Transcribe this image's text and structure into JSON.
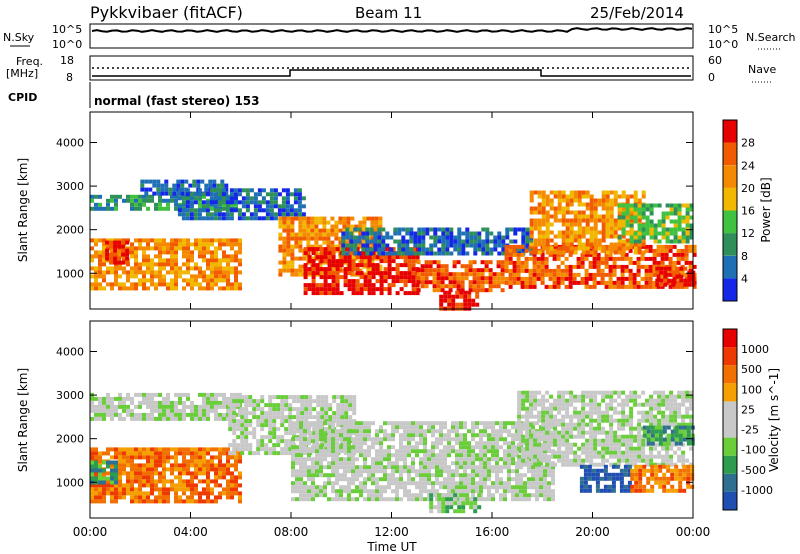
{
  "header": {
    "station": "Pykkvibaer (fitACF)",
    "beam": "Beam 11",
    "date": "25/Feb/2014"
  },
  "aux_panels": {
    "nsky_label": "N.Sky",
    "nsearch_label": "N.Search",
    "nsky_ticks": [
      "10^5",
      "10^0"
    ],
    "nsearch_ticks": [
      "10^5",
      "10^0"
    ],
    "freq_label_1": "Freq.",
    "freq_label_2": "[MHz]",
    "freq_ticks": [
      "18",
      "8"
    ],
    "nave_label": "Nave",
    "nave_ticks": [
      "60",
      "0"
    ],
    "cpid_label": "CPID",
    "cpid_text": "normal (fast stereo) 153"
  },
  "colors": {
    "power_scale": [
      "#1426e8",
      "#1e6fb5",
      "#2f8f5a",
      "#3fc23f",
      "#f2b800",
      "#f58a00",
      "#f25a00",
      "#e60000"
    ],
    "velocity_scale": [
      "#1f4fb0",
      "#2f6f8f",
      "#2e9c4f",
      "#6acd3a",
      "#c8c8c8",
      "#c8c8c8",
      "#f5a000",
      "#f27000",
      "#ee3a00",
      "#e60000"
    ],
    "ground_scatter": "#c0c0c0"
  },
  "chart_data": [
    {
      "type": "heatmap",
      "title": "",
      "xlabel": "",
      "ylabel": "Slant Range [km]",
      "x_ticks": [
        "00:00",
        "04:00",
        "08:00",
        "12:00",
        "16:00",
        "20:00",
        "00:00"
      ],
      "y_ticks": [
        "1000",
        "2000",
        "3000",
        "4000"
      ],
      "ylim": [
        180,
        4700
      ],
      "colorbar": {
        "label": "Power [dB]",
        "tick_labels": [
          "4",
          "8",
          "12",
          "16",
          "20",
          "24",
          "28"
        ]
      },
      "echo_bands": [
        {
          "t": [
            0.0,
            5.9
          ],
          "r": [
            650,
            1800
          ],
          "level": 5
        },
        {
          "t": [
            0.6,
            1.4
          ],
          "r": [
            1250,
            1750
          ],
          "level": 7
        },
        {
          "t": [
            0.0,
            5.8
          ],
          "r": [
            2450,
            2800
          ],
          "level": 2
        },
        {
          "t": [
            2.0,
            5.5
          ],
          "r": [
            2800,
            3150
          ],
          "level": 1
        },
        {
          "t": [
            3.5,
            8.5
          ],
          "r": [
            2250,
            2950
          ],
          "level": 1
        },
        {
          "t": [
            7.5,
            11.5
          ],
          "r": [
            1000,
            2300
          ],
          "level": 5
        },
        {
          "t": [
            8.5,
            13.0
          ],
          "r": [
            550,
            1600
          ],
          "level": 7
        },
        {
          "t": [
            10.0,
            17.5
          ],
          "r": [
            1450,
            2050
          ],
          "level": 1
        },
        {
          "t": [
            13.0,
            16.5
          ],
          "r": [
            600,
            1300
          ],
          "level": 6
        },
        {
          "t": [
            13.9,
            15.4
          ],
          "r": [
            200,
            600
          ],
          "level": 7
        },
        {
          "t": [
            16.5,
            24.0
          ],
          "r": [
            650,
            1650
          ],
          "level": 6
        },
        {
          "t": [
            17.5,
            22.0
          ],
          "r": [
            1500,
            2900
          ],
          "level": 5
        },
        {
          "t": [
            21.0,
            24.0
          ],
          "r": [
            1700,
            2600
          ],
          "level": 3
        },
        {
          "t": [
            22.5,
            24.0
          ],
          "r": [
            750,
            1150
          ],
          "level": 7
        }
      ]
    },
    {
      "type": "heatmap",
      "title": "",
      "xlabel": "Time UT",
      "ylabel": "Slant Range [km]",
      "x_ticks": [
        "00:00",
        "04:00",
        "08:00",
        "12:00",
        "16:00",
        "20:00",
        "00:00"
      ],
      "y_ticks": [
        "1000",
        "2000",
        "3000",
        "4000"
      ],
      "ylim": [
        180,
        4700
      ],
      "colorbar": {
        "label": "Velocity [m s^-1]",
        "tick_labels": [
          "1000",
          "500",
          "100",
          "25",
          "-25",
          "-100",
          "-500",
          "-1000"
        ]
      },
      "echo_bands": [
        {
          "t": [
            0.0,
            6.0
          ],
          "r": [
            2450,
            3050
          ],
          "level": 4
        },
        {
          "t": [
            0.0,
            6.0
          ],
          "r": [
            600,
            1800
          ],
          "level": 7
        },
        {
          "t": [
            0.0,
            1.0
          ],
          "r": [
            1000,
            1500
          ],
          "level": 2
        },
        {
          "t": [
            5.5,
            10.5
          ],
          "r": [
            1700,
            3000
          ],
          "level": 4
        },
        {
          "t": [
            8.0,
            18.5
          ],
          "r": [
            650,
            2400
          ],
          "level": 4
        },
        {
          "t": [
            13.5,
            15.5
          ],
          "r": [
            350,
            750
          ],
          "level": 3
        },
        {
          "t": [
            17.0,
            24.0
          ],
          "r": [
            1400,
            3100
          ],
          "level": 4
        },
        {
          "t": [
            19.5,
            21.5
          ],
          "r": [
            800,
            1400
          ],
          "level": 0
        },
        {
          "t": [
            21.5,
            24.0
          ],
          "r": [
            800,
            1400
          ],
          "level": 7
        },
        {
          "t": [
            22.0,
            24.0
          ],
          "r": [
            1900,
            2300
          ],
          "level": 2
        }
      ]
    }
  ]
}
